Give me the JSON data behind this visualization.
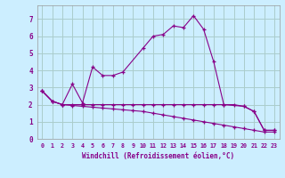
{
  "xlabel": "Windchill (Refroidissement éolien,°C)",
  "background_color": "#cceeff",
  "grid_color": "#aacccc",
  "line_color": "#880088",
  "xlim": [
    -0.5,
    23.5
  ],
  "ylim": [
    0,
    7.8
  ],
  "xticks": [
    0,
    1,
    2,
    3,
    4,
    5,
    6,
    7,
    8,
    9,
    10,
    11,
    12,
    13,
    14,
    15,
    16,
    17,
    18,
    19,
    20,
    21,
    22,
    23
  ],
  "yticks": [
    0,
    1,
    2,
    3,
    4,
    5,
    6,
    7
  ],
  "series1_x": [
    0,
    1,
    2,
    3,
    4,
    5,
    6,
    7,
    8,
    10,
    11,
    12,
    13,
    14,
    15,
    16,
    17,
    18,
    20,
    21,
    22,
    23
  ],
  "series1_y": [
    2.8,
    2.2,
    2.0,
    3.2,
    2.1,
    4.2,
    3.7,
    3.7,
    3.9,
    5.3,
    6.0,
    6.1,
    6.6,
    6.5,
    7.2,
    6.4,
    4.5,
    2.0,
    1.9,
    1.6,
    0.5,
    0.5
  ],
  "series2_x": [
    0,
    1,
    2,
    3,
    4,
    5,
    6,
    7,
    8,
    9,
    10,
    11,
    12,
    13,
    14,
    15,
    16,
    17,
    18,
    19,
    20,
    21,
    22,
    23
  ],
  "series2_y": [
    2.8,
    2.2,
    2.0,
    2.0,
    2.0,
    2.0,
    2.0,
    2.0,
    2.0,
    2.0,
    2.0,
    2.0,
    2.0,
    2.0,
    2.0,
    2.0,
    2.0,
    2.0,
    2.0,
    2.0,
    1.9,
    1.6,
    0.5,
    0.5
  ],
  "series3_x": [
    0,
    1,
    2,
    3,
    4,
    5,
    6,
    7,
    8,
    9,
    10,
    11,
    12,
    13,
    14,
    15,
    16,
    17,
    18,
    19,
    20,
    21,
    22,
    23
  ],
  "series3_y": [
    2.8,
    2.2,
    2.0,
    1.95,
    1.9,
    1.85,
    1.8,
    1.75,
    1.7,
    1.65,
    1.6,
    1.5,
    1.4,
    1.3,
    1.2,
    1.1,
    1.0,
    0.9,
    0.8,
    0.7,
    0.6,
    0.5,
    0.4,
    0.4
  ]
}
